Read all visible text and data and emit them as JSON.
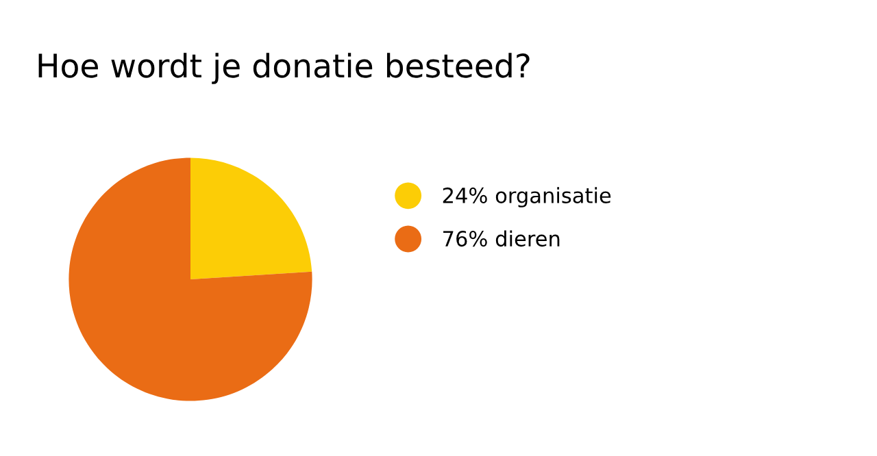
{
  "chart_data": {
    "type": "pie",
    "title": "Hoe wordt je donatie besteed?",
    "categories": [
      "organisatie",
      "dieren"
    ],
    "values": [
      24,
      76
    ],
    "value_labels": [
      "24%",
      "76%"
    ],
    "colors": [
      "#fccd06",
      "#ea6c15"
    ],
    "legend": "right"
  }
}
